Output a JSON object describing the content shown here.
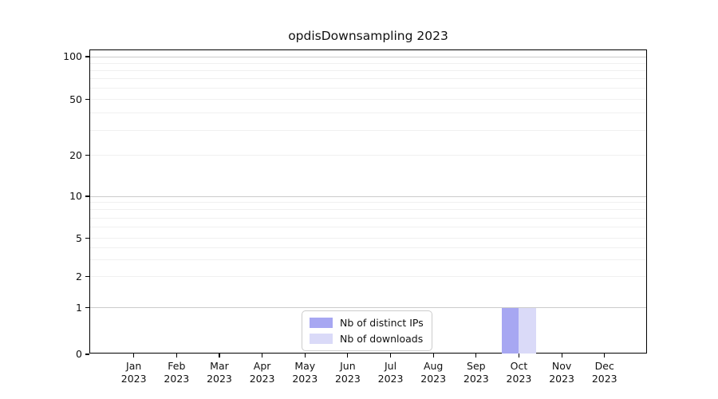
{
  "chart_data": {
    "type": "bar",
    "title": "opdisDownsampling 2023",
    "categories": [
      "Jan",
      "Feb",
      "Mar",
      "Apr",
      "May",
      "Jun",
      "Jul",
      "Aug",
      "Sep",
      "Oct",
      "Nov",
      "Dec"
    ],
    "year_label": "2023",
    "series": [
      {
        "name": "Nb of distinct IPs",
        "color": "#a7a7f2",
        "values": [
          0,
          0,
          0,
          0,
          0,
          0,
          0,
          0,
          0,
          1,
          0,
          0
        ]
      },
      {
        "name": "Nb of downloads",
        "color": "#dadaf8",
        "values": [
          0,
          0,
          0,
          0,
          0,
          0,
          0,
          0,
          0,
          1,
          0,
          0
        ]
      }
    ],
    "yscale": "symlog",
    "ylim": [
      0,
      110
    ],
    "y_ticks": [
      0,
      1,
      2,
      5,
      10,
      20,
      50,
      100
    ],
    "y_tick_labels": [
      "0",
      "1",
      "2",
      "5",
      "10",
      "20",
      "50",
      "100"
    ],
    "decade_grid_values": [
      1,
      10,
      100
    ],
    "minor_grid_values": [
      2,
      3,
      4,
      5,
      6,
      7,
      8,
      9,
      20,
      30,
      40,
      50,
      60,
      70,
      80,
      90
    ],
    "grid": "horizontal",
    "legend_position": "bottom-center-inside"
  },
  "colors": {
    "distinct_ips": "#a7a7f2",
    "downloads": "#dadaf8",
    "decade_gridline": "#cbcbcb",
    "minor_gridline": "#f0f0f0",
    "spine": "#000000"
  }
}
